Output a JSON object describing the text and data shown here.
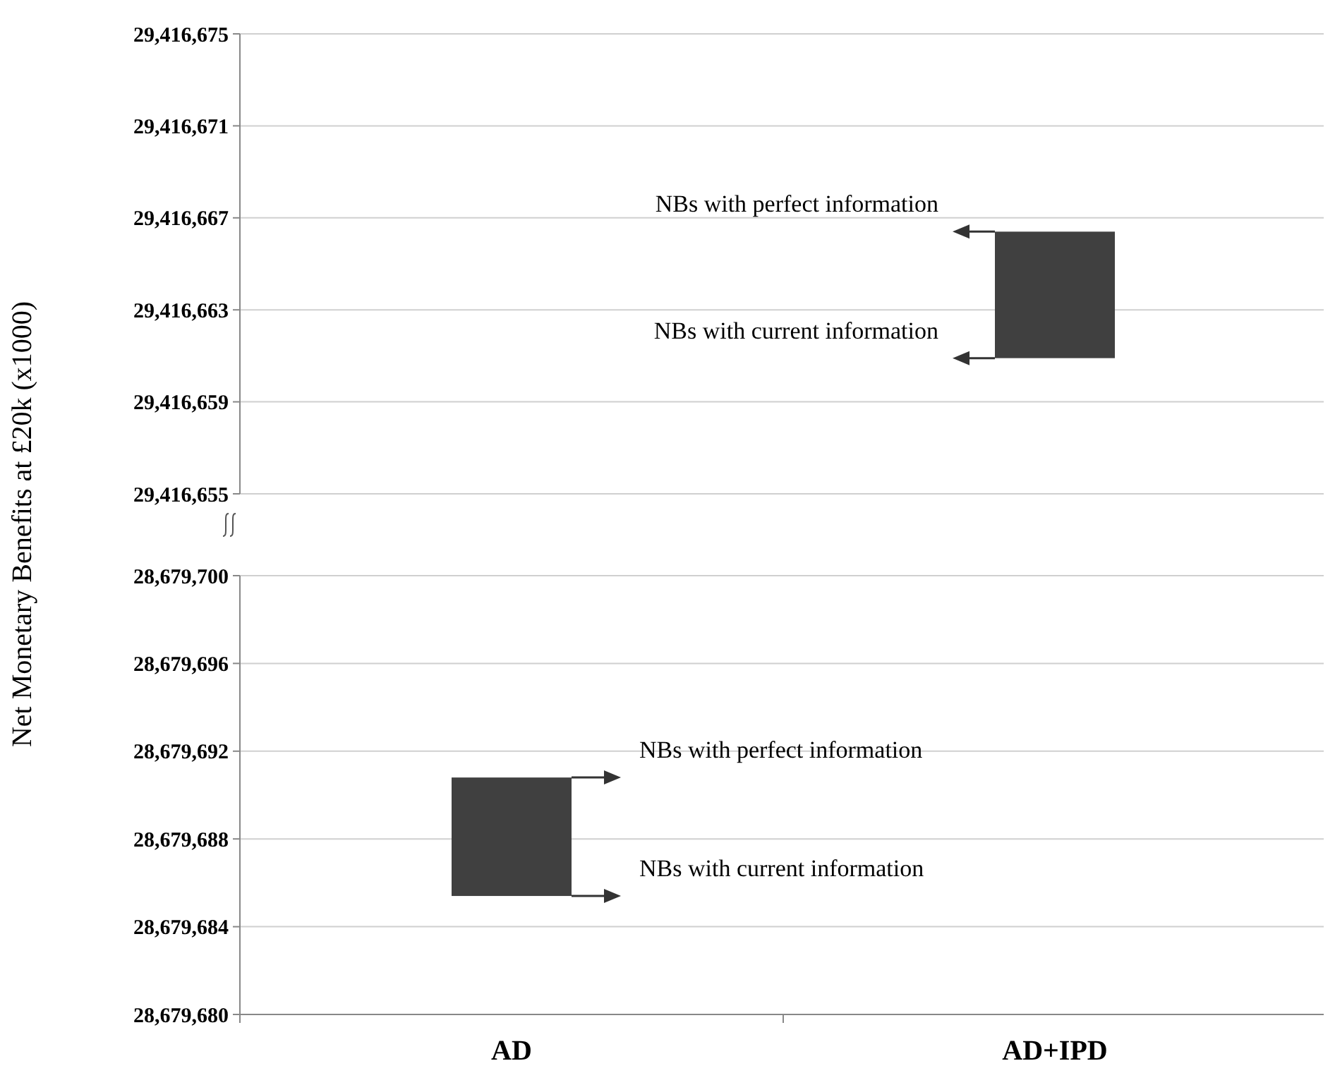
{
  "chart_data": [
    {
      "type": "bar",
      "ylabel": "Net Monetary Benefits at £20k (x1000)",
      "categories": [
        null,
        null
      ],
      "values": [
        null,
        5.5
      ],
      "base": [
        null,
        29416660.9
      ],
      "color": "#404040",
      "ylim": [
        29416655,
        29416675
      ],
      "yticks": [
        {
          "value": 29416655,
          "label": "29,416,655"
        },
        {
          "value": 29416659,
          "label": "29,416,659"
        },
        {
          "value": 29416663,
          "label": "29,416,663"
        },
        {
          "value": 29416667,
          "label": "29,416,667"
        },
        {
          "value": 29416671,
          "label": "29,416,671"
        },
        {
          "value": 29416675,
          "label": "29,416,675"
        }
      ],
      "grid": "y",
      "tick_labels": "y",
      "annotations": [
        "NBs with perfect information",
        "NBs with current information"
      ]
    },
    {
      "type": "bar",
      "categories": [
        "AD",
        "AD+IPD"
      ],
      "values": [
        5.4,
        null
      ],
      "base": [
        28679685.4,
        null
      ],
      "color": "#404040",
      "ylim": [
        28679680,
        28679700
      ],
      "yticks": [
        {
          "value": 28679680,
          "label": "28,679,680"
        },
        {
          "value": 28679684,
          "label": "28,679,684"
        },
        {
          "value": 28679688,
          "label": "28,679,688"
        },
        {
          "value": 28679692,
          "label": "28,679,692"
        },
        {
          "value": 28679696,
          "label": "28,679,696"
        },
        {
          "value": 28679700,
          "label": "28,679,700"
        }
      ],
      "grid": "y",
      "annotations": [
        "NBs with perfect information",
        "NBs with current information"
      ]
    }
  ]
}
